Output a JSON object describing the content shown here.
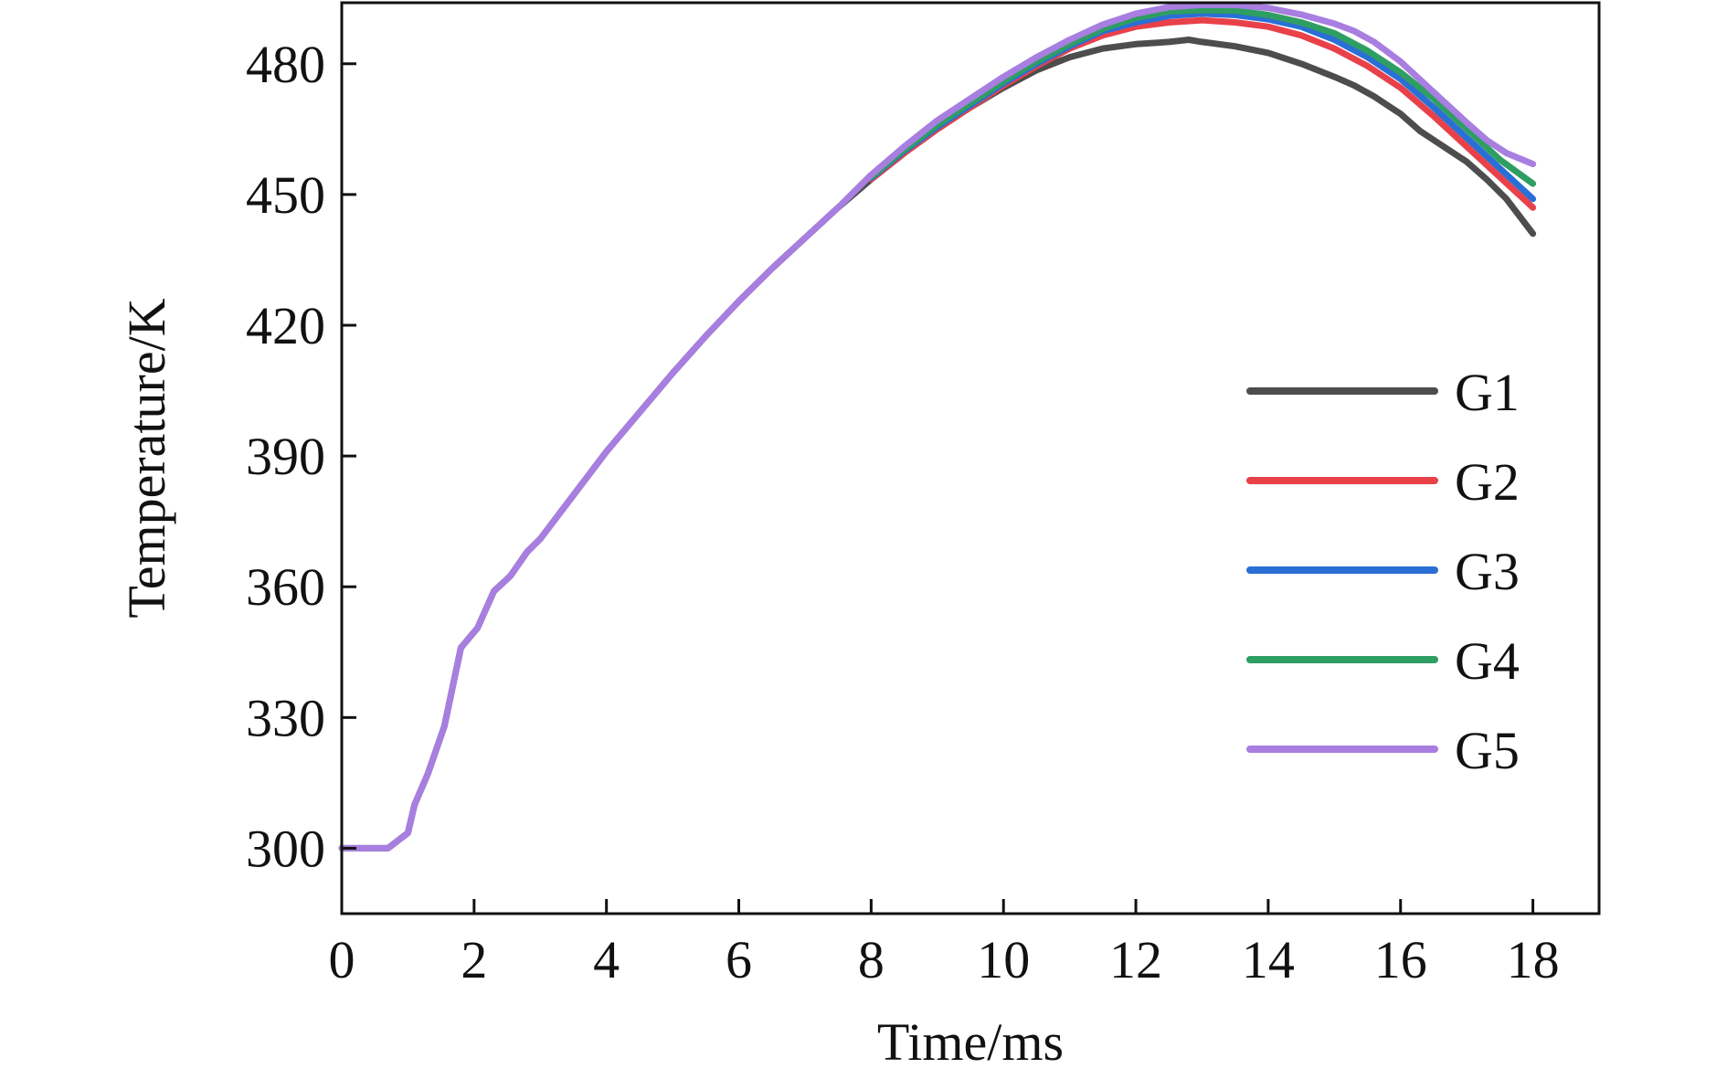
{
  "chart_data": {
    "type": "line",
    "title": "",
    "xlabel": "Time/ms",
    "ylabel": "Temperature/K",
    "xlim": [
      0,
      19
    ],
    "ylim": [
      285,
      494
    ],
    "xticks": [
      0,
      2,
      4,
      6,
      8,
      10,
      12,
      14,
      16,
      18
    ],
    "yticks": [
      300,
      330,
      360,
      390,
      420,
      450,
      480
    ],
    "grid": false,
    "legend_position": "right",
    "series": [
      {
        "name": "G1",
        "color": "#4d4d4d",
        "x": [
          0,
          0.7,
          1.0,
          1.1,
          1.3,
          1.55,
          1.8,
          2.05,
          2.3,
          2.55,
          2.8,
          3.0,
          3.3,
          3.6,
          4.0,
          4.5,
          5.0,
          5.5,
          6.0,
          6.5,
          7.0,
          7.5,
          8.0,
          8.5,
          9.0,
          9.5,
          10.0,
          10.5,
          11.0,
          11.5,
          12.0,
          12.5,
          12.8,
          13.0,
          13.5,
          14.0,
          14.5,
          15.0,
          15.3,
          15.6,
          16.0,
          16.3,
          16.6,
          16.8,
          17.0,
          17.3,
          17.6,
          18.0
        ],
        "values": [
          300,
          300,
          303.5,
          310,
          317,
          328,
          346,
          350.5,
          359,
          362.5,
          368,
          371,
          377,
          383,
          391,
          400,
          409,
          417.5,
          425.5,
          433,
          440,
          447,
          453.5,
          459.5,
          465,
          470,
          474.5,
          478.5,
          481.5,
          483.5,
          484.5,
          485,
          485.5,
          485,
          484,
          482.5,
          480,
          477,
          475,
          472.5,
          468.5,
          464.5,
          461.5,
          459.5,
          457.5,
          453.5,
          449,
          441
        ]
      },
      {
        "name": "G2",
        "color": "#e8414a",
        "x": [
          8.0,
          8.5,
          9.0,
          9.5,
          10.0,
          10.5,
          11.0,
          11.5,
          12.0,
          12.5,
          13.0,
          13.5,
          14.0,
          14.5,
          15.0,
          15.5,
          16.0,
          16.5,
          17.0,
          17.5,
          18.0
        ],
        "values": [
          453.5,
          459.5,
          465,
          470,
          475,
          479.5,
          483.5,
          486.5,
          488.5,
          489.5,
          490,
          489.5,
          488.5,
          486.5,
          483.5,
          479.5,
          474.5,
          468,
          461,
          454,
          447
        ]
      },
      {
        "name": "G3",
        "color": "#2a6fd6",
        "x": [
          8.0,
          8.5,
          9.0,
          9.5,
          10.0,
          10.5,
          11.0,
          11.5,
          12.0,
          12.5,
          13.0,
          13.5,
          14.0,
          14.5,
          15.0,
          15.5,
          16.0,
          16.5,
          17.0,
          17.5,
          18.0
        ],
        "values": [
          453.8,
          460,
          465.5,
          470.5,
          475.5,
          480,
          484,
          487.5,
          489.5,
          491,
          491.5,
          491.2,
          490.2,
          488.5,
          485.5,
          481.5,
          476.5,
          470,
          463,
          456,
          449
        ]
      },
      {
        "name": "G4",
        "color": "#2e9e62",
        "x": [
          8.0,
          8.5,
          9.0,
          9.5,
          10.0,
          10.5,
          11.0,
          11.5,
          12.0,
          12.5,
          13.0,
          13.5,
          14.0,
          14.5,
          15.0,
          15.5,
          16.0,
          16.5,
          17.0,
          17.5,
          18.0
        ],
        "values": [
          454,
          460.3,
          466,
          471,
          476,
          480.5,
          484.5,
          488,
          490.5,
          492,
          492.3,
          492.2,
          491.2,
          489.5,
          487,
          483,
          478,
          472,
          465,
          458,
          452.5
        ]
      },
      {
        "name": "G5",
        "color": "#a87ee0",
        "x": [
          0,
          0.7,
          1.0,
          1.1,
          1.3,
          1.55,
          1.8,
          2.05,
          2.3,
          2.55,
          2.8,
          3.0,
          3.3,
          3.6,
          4.0,
          4.5,
          5.0,
          5.5,
          6.0,
          6.5,
          7.0,
          7.5,
          8.0,
          8.5,
          9.0,
          9.5,
          10.0,
          10.5,
          11.0,
          11.5,
          12.0,
          12.5,
          13.0,
          13.5,
          14.0,
          14.5,
          15.0,
          15.3,
          15.6,
          16.0,
          16.5,
          17.0,
          17.3,
          17.6,
          18.0
        ],
        "values": [
          300,
          300,
          303.5,
          310,
          317,
          328,
          346,
          350.5,
          359,
          362.5,
          368,
          371,
          377,
          383,
          391,
          400,
          409,
          417.5,
          425.5,
          433,
          440,
          447,
          454.5,
          461,
          467,
          472,
          477,
          481.5,
          485.5,
          489,
          491.5,
          493,
          493.5,
          493.5,
          492.8,
          491.3,
          489.2,
          487.5,
          485,
          480.5,
          473.5,
          466.5,
          462.5,
          459.5,
          457
        ]
      }
    ]
  }
}
